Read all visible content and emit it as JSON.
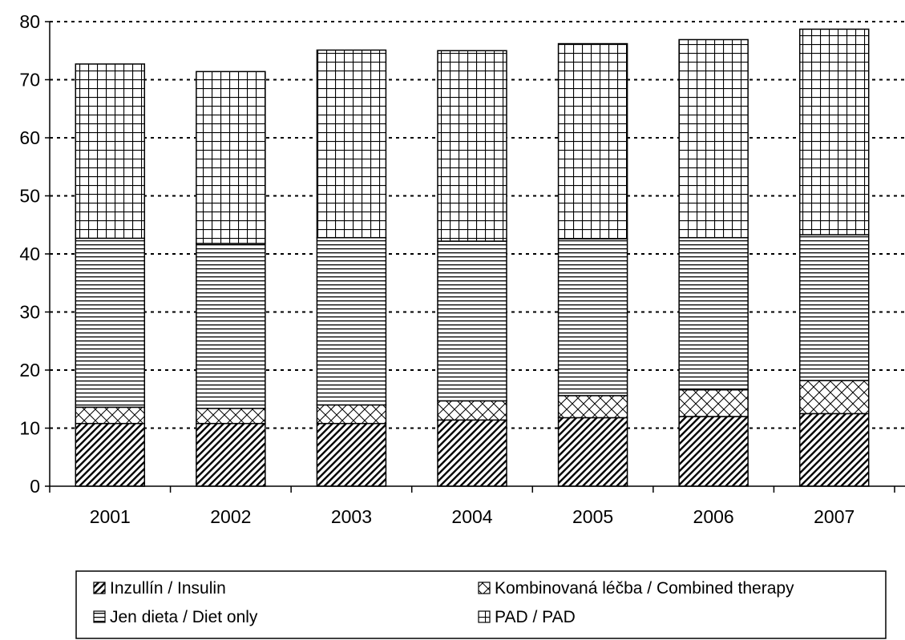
{
  "chart_data": {
    "type": "bar",
    "stacked": true,
    "title": "",
    "xlabel": "",
    "ylabel": "",
    "categories": [
      "2001",
      "2002",
      "2003",
      "2004",
      "2005",
      "2006",
      "2007"
    ],
    "ylim": [
      0,
      80
    ],
    "yticks": [
      0,
      10,
      20,
      30,
      40,
      50,
      60,
      70,
      80
    ],
    "grid": "horizontal dotted",
    "legend_position": "bottom",
    "series": [
      {
        "name": "Inzullín / Insulin",
        "pattern": "diagonal-hatch",
        "values": [
          10.8,
          10.8,
          10.8,
          11.4,
          11.8,
          12.0,
          12.5
        ]
      },
      {
        "name": "Kombinovaná léčba / Combined therapy",
        "pattern": "crosshatch",
        "values": [
          2.8,
          2.6,
          3.2,
          3.3,
          3.8,
          4.6,
          5.7
        ]
      },
      {
        "name": "Jen dieta / Diet only",
        "pattern": "horizontal-lines",
        "values": [
          29.1,
          28.4,
          28.8,
          27.5,
          27.0,
          26.2,
          25.1
        ]
      },
      {
        "name": "PAD / PAD",
        "pattern": "grid",
        "values": [
          30.0,
          29.6,
          32.3,
          32.8,
          33.6,
          34.1,
          35.4
        ]
      }
    ],
    "colors": {
      "background": "#ffffff",
      "ink": "#000000",
      "grid": "#000000"
    }
  }
}
